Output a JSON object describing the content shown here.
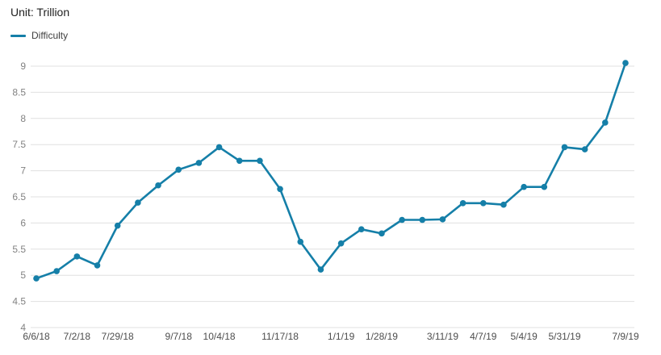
{
  "header": {
    "title": "Unit: Trillion"
  },
  "legend": {
    "label": "Difficulty",
    "color": "#157fa8"
  },
  "chart_data": {
    "type": "line",
    "title": "Unit: Trillion",
    "unit": "Trillion",
    "legend_position": "top-left",
    "grid": true,
    "ylim": [
      4,
      9.4
    ],
    "y_ticks": [
      "4",
      "4.5",
      "5",
      "5.5",
      "6",
      "6.5",
      "7",
      "7.5",
      "8",
      "8.5",
      "9"
    ],
    "x_labels": [
      "6/6/18",
      "",
      "7/2/18",
      "",
      "7/29/18",
      "",
      "",
      "9/7/18",
      "",
      "10/4/18",
      "",
      "",
      "11/17/18",
      "",
      "",
      "1/1/19",
      "",
      "1/28/19",
      "",
      "",
      "3/11/19",
      "",
      "4/7/19",
      "",
      "5/4/19",
      "",
      "5/31/19",
      "",
      "",
      "7/9/19"
    ],
    "series": [
      {
        "name": "Difficulty",
        "color": "#157fa8",
        "values": [
          4.94,
          5.08,
          5.36,
          5.19,
          5.95,
          6.39,
          6.72,
          7.02,
          7.15,
          7.45,
          7.19,
          7.19,
          6.65,
          5.64,
          5.11,
          5.61,
          5.88,
          5.8,
          6.06,
          6.06,
          6.07,
          6.38,
          6.38,
          6.35,
          6.69,
          6.69,
          7.45,
          7.41,
          7.92,
          9.06
        ]
      }
    ],
    "colors": {
      "line": "#157fa8",
      "grid": "#e0e0e0",
      "y_tick_label": "#828282",
      "x_tick_label": "#4d4d4d",
      "title": "#212121"
    }
  }
}
